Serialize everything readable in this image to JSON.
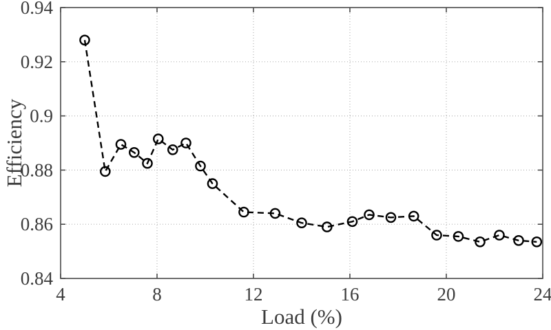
{
  "chart_data": {
    "type": "line",
    "title": "",
    "xlabel": "Load (%)",
    "ylabel": "Efficiency",
    "xlim": [
      4,
      24
    ],
    "ylim": [
      0.84,
      0.94
    ],
    "xticks": [
      4,
      8,
      12,
      16,
      20,
      24
    ],
    "xtick_labels": [
      "4",
      "8",
      "12",
      "16",
      "20",
      "24"
    ],
    "yticks": [
      0.84,
      0.86,
      0.88,
      0.9,
      0.92,
      0.94
    ],
    "ytick_labels": [
      "0.84",
      "0.86",
      "0.88",
      "0.9",
      "0.92",
      "0.94"
    ],
    "grid": true,
    "grid_style": "dotted",
    "legend": "none",
    "line_style": "dashed",
    "marker": "open-circle",
    "series": [
      {
        "name": "Efficiency",
        "x": [
          5.0,
          5.85,
          6.5,
          7.05,
          7.6,
          8.05,
          8.65,
          9.2,
          9.8,
          10.3,
          11.6,
          12.9,
          14.0,
          15.05,
          16.1,
          16.8,
          17.7,
          18.65,
          19.6,
          20.5,
          21.4,
          22.2,
          23.0,
          23.75
        ],
        "y": [
          0.928,
          0.8795,
          0.8895,
          0.8865,
          0.8825,
          0.8915,
          0.8875,
          0.89,
          0.8815,
          0.875,
          0.8645,
          0.864,
          0.8605,
          0.859,
          0.861,
          0.8635,
          0.8625,
          0.863,
          0.856,
          0.8555,
          0.8535,
          0.856,
          0.854,
          0.8535
        ]
      }
    ],
    "colors": {
      "line": "#000000",
      "marker": "#000000",
      "axis": "#4a4a4a",
      "grid": "#b2b2b2",
      "text": "#3c3c3c",
      "background": "#ffffff"
    }
  }
}
